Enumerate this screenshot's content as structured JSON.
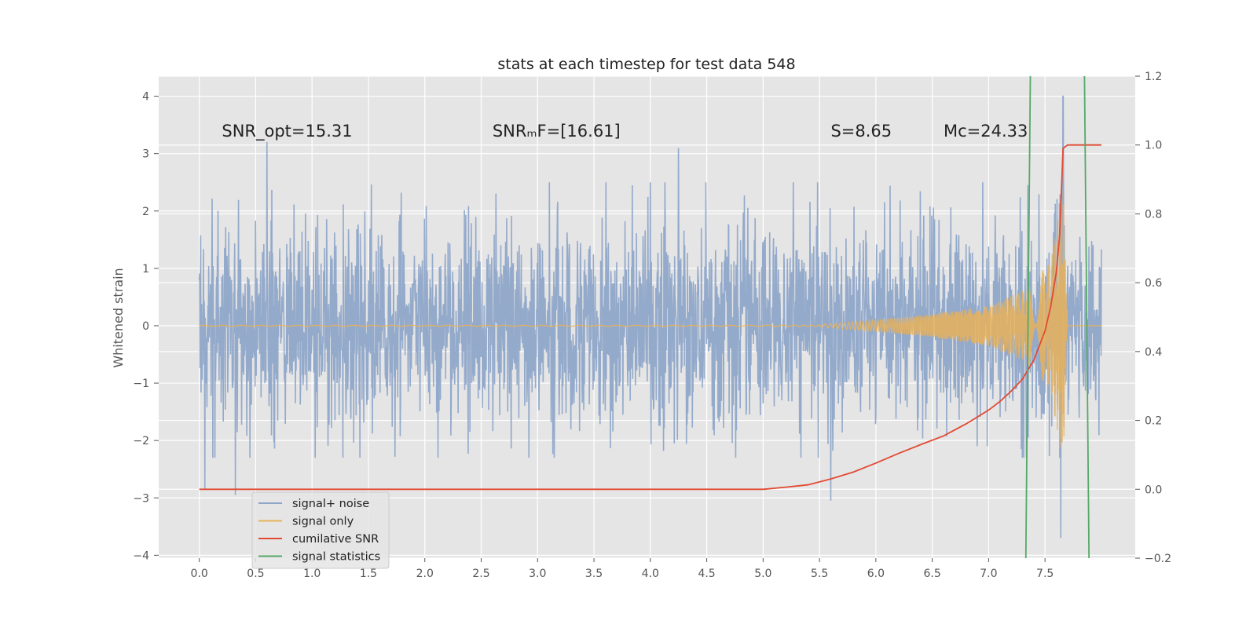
{
  "chart_data": {
    "type": "line",
    "title": "stats at each timestep for test data 548",
    "xlabel": "",
    "ylabel": "Whitened strain",
    "xlim": [
      -0.36,
      8.3
    ],
    "ylim": [
      -4.05,
      4.35
    ],
    "ylim_right": [
      -0.2,
      1.2
    ],
    "x_ticks": [
      0.0,
      0.5,
      1.0,
      1.5,
      2.0,
      2.5,
      3.0,
      3.5,
      4.0,
      4.5,
      5.0,
      5.5,
      6.0,
      6.5,
      7.0,
      7.5
    ],
    "x_tick_labels": [
      "0.0",
      "0.5",
      "1.0",
      "1.5",
      "2.0",
      "2.5",
      "3.0",
      "3.5",
      "4.0",
      "4.5",
      "5.0",
      "5.5",
      "6.0",
      "6.5",
      "7.0",
      "7.5"
    ],
    "y_ticks": [
      -4,
      -3,
      -2,
      -1,
      0,
      1,
      2,
      3,
      4
    ],
    "y_tick_labels": [
      "−4",
      "−3",
      "−2",
      "−1",
      "0",
      "1",
      "2",
      "3",
      "4"
    ],
    "y2_ticks": [
      -0.2,
      0.0,
      0.2,
      0.4,
      0.6,
      0.8,
      1.0,
      1.2
    ],
    "y2_tick_labels": [
      "−0.2",
      "0.0",
      "0.2",
      "0.4",
      "0.6",
      "0.8",
      "1.0",
      "1.2"
    ],
    "grid": true,
    "legend_position": "lower-left",
    "annotations": [
      {
        "id": "snr-opt",
        "text": "SNR_opt=15.31",
        "x": 0.2,
        "y": 3.3
      },
      {
        "id": "snr-mf",
        "text": "SNRₘF=[16.61]",
        "x": 2.6,
        "y": 3.3
      },
      {
        "id": "s-value",
        "text": "S=8.65",
        "x": 5.6,
        "y": 3.3
      },
      {
        "id": "mc-value",
        "text": "Mᴄ=24.33",
        "x": 6.6,
        "y": 3.3
      }
    ],
    "series": [
      {
        "name": "signal+ noise",
        "color": "#8fa6c9",
        "axis": "left",
        "x_start": 0.0,
        "x_end": 8.0,
        "noise_std": 1.0,
        "typical_range": [
          -1.9,
          2.0
        ],
        "extremes": [
          {
            "x": 0.6,
            "y": 3.2
          },
          {
            "x": 4.25,
            "y": 3.1
          },
          {
            "x": 7.66,
            "y": 4.0
          },
          {
            "x": 0.05,
            "y": -2.85
          },
          {
            "x": 0.32,
            "y": -2.95
          },
          {
            "x": 5.6,
            "y": -3.05
          },
          {
            "x": 7.64,
            "y": -3.7
          }
        ]
      },
      {
        "name": "signal only",
        "color": "#e8b25a",
        "axis": "left",
        "description_points": [
          {
            "x": 5.5,
            "amplitude": 0.02
          },
          {
            "x": 6.0,
            "amplitude": 0.1
          },
          {
            "x": 6.5,
            "amplitude": 0.2
          },
          {
            "x": 7.0,
            "amplitude": 0.35
          },
          {
            "x": 7.3,
            "amplitude": 0.6
          },
          {
            "x": 7.55,
            "amplitude": 1.1
          },
          {
            "x": 7.66,
            "amplitude": 2.5
          },
          {
            "x": 7.7,
            "amplitude": 0.0
          }
        ]
      },
      {
        "name": "cumilative SNR",
        "color": "#e24a33",
        "axis": "right",
        "x": [
          0.0,
          1.0,
          2.0,
          3.0,
          4.0,
          5.0,
          5.2,
          5.4,
          5.6,
          5.8,
          6.0,
          6.2,
          6.4,
          6.6,
          6.8,
          7.0,
          7.1,
          7.2,
          7.3,
          7.4,
          7.5,
          7.55,
          7.6,
          7.63,
          7.66,
          7.7,
          7.75,
          7.8,
          8.0
        ],
        "y": [
          0.0,
          0.0,
          0.0,
          0.0,
          0.0,
          0.0,
          0.006,
          0.013,
          0.03,
          0.05,
          0.076,
          0.104,
          0.13,
          0.155,
          0.19,
          0.23,
          0.255,
          0.285,
          0.32,
          0.375,
          0.46,
          0.53,
          0.63,
          0.74,
          0.99,
          1.0,
          1.0,
          1.0,
          1.0
        ]
      },
      {
        "name": "signal statistics",
        "color": "#55a868",
        "axis": "left",
        "lines": [
          {
            "x": [
              7.33,
              7.37
            ],
            "y": [
              -4.05,
              4.35
            ]
          },
          {
            "x": [
              7.85,
              7.89
            ],
            "y": [
              4.35,
              -4.05
            ]
          }
        ]
      }
    ]
  }
}
